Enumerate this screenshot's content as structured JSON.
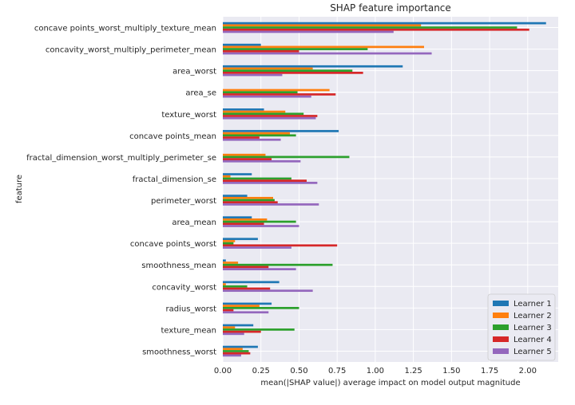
{
  "chart_data": {
    "type": "bar",
    "orientation": "horizontal",
    "title": "SHAP feature importance",
    "xlabel": "mean(|SHAP value|) average impact on model output magnitude",
    "ylabel": "feature",
    "xlim": [
      0,
      2.2
    ],
    "xticks": [
      "0.00",
      "0.25",
      "0.50",
      "0.75",
      "1.00",
      "1.25",
      "1.50",
      "1.75",
      "2.00"
    ],
    "grid": true,
    "legend_position": "lower-right",
    "categories": [
      "concave points_worst_multiply_texture_mean",
      "concavity_worst_multiply_perimeter_mean",
      "area_worst",
      "area_se",
      "texture_worst",
      "concave points_mean",
      "fractal_dimension_worst_multiply_perimeter_se",
      "fractal_dimension_se",
      "perimeter_worst",
      "area_mean",
      "concave points_worst",
      "smoothness_mean",
      "concavity_worst",
      "radius_worst",
      "texture_mean",
      "smoothness_worst"
    ],
    "series": [
      {
        "name": "Learner 1",
        "color": "#1f77b4",
        "values": [
          2.12,
          0.25,
          1.18,
          0.0,
          0.27,
          0.76,
          0.0,
          0.19,
          0.16,
          0.19,
          0.23,
          0.02,
          0.37,
          0.32,
          0.2,
          0.23
        ]
      },
      {
        "name": "Learner 2",
        "color": "#ff7f0e",
        "values": [
          1.3,
          1.32,
          0.59,
          0.7,
          0.41,
          0.44,
          0.28,
          0.05,
          0.33,
          0.29,
          0.08,
          0.1,
          0.02,
          0.24,
          0.08,
          0.13
        ]
      },
      {
        "name": "Learner 3",
        "color": "#2ca02c",
        "values": [
          1.93,
          0.95,
          0.85,
          0.49,
          0.53,
          0.48,
          0.83,
          0.45,
          0.34,
          0.48,
          0.07,
          0.72,
          0.16,
          0.5,
          0.47,
          0.17
        ]
      },
      {
        "name": "Learner 4",
        "color": "#d62728",
        "values": [
          2.01,
          0.5,
          0.92,
          0.74,
          0.62,
          0.24,
          0.32,
          0.55,
          0.36,
          0.27,
          0.75,
          0.3,
          0.31,
          0.07,
          0.25,
          0.18
        ]
      },
      {
        "name": "Learner 5",
        "color": "#9467bd",
        "values": [
          1.12,
          1.37,
          0.39,
          0.58,
          0.61,
          0.38,
          0.51,
          0.62,
          0.63,
          0.5,
          0.45,
          0.48,
          0.59,
          0.3,
          0.14,
          0.12
        ]
      }
    ]
  }
}
